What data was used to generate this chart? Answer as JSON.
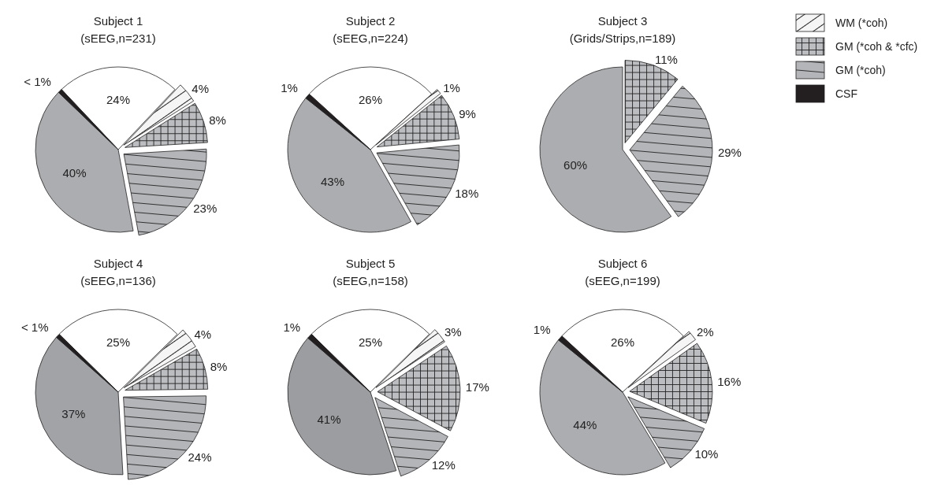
{
  "chart_data": [
    {
      "type": "pie",
      "title": "Subject 1",
      "subtitle": "(sEEG,n=231)",
      "categories": [
        null,
        "WM (*coh)",
        "GM (*coh & *cfc)",
        "GM (*coh)",
        null,
        "CSF"
      ],
      "values": [
        24,
        4,
        8,
        23,
        40,
        0.8
      ],
      "value_labels": [
        "24%",
        "4%",
        "8%",
        "23%",
        "40%",
        "< 1%"
      ],
      "colors": [
        "#ffffff",
        "#f5f5f5",
        "#bcbdc0",
        "#b4b5b8",
        "#acadb0",
        "#231f20"
      ],
      "legend": "right"
    },
    {
      "type": "pie",
      "title": "Subject 2",
      "subtitle": "(sEEG,n=224)",
      "categories": [
        null,
        null,
        null,
        null,
        null,
        null
      ],
      "values": [
        26,
        1,
        9,
        18,
        43,
        1
      ],
      "value_labels": [
        "26%",
        "1%",
        "9%",
        "18%",
        "43%",
        "1%"
      ],
      "colors": [
        "#ffffff",
        "#f5f5f5",
        "#bcbdc0",
        "#b4b5b8",
        "#acadb0",
        "#231f20"
      ]
    },
    {
      "type": "pie",
      "title": "Subject 3",
      "subtitle": "(Grids/Strips,n=189)",
      "categories": [
        null,
        null,
        null
      ],
      "values": [
        11,
        29,
        60
      ],
      "value_labels": [
        "11%",
        "29%",
        "60%"
      ],
      "colors": [
        "#bcbdc0",
        "#b4b5b8",
        "#acadb0"
      ]
    },
    {
      "type": "pie",
      "title": "Subject 4",
      "subtitle": "(sEEG,n=136)",
      "categories": [
        null,
        null,
        null,
        null,
        null,
        null
      ],
      "values": [
        25,
        4,
        8,
        24,
        37,
        0.8
      ],
      "value_labels": [
        "25%",
        "4%",
        "8%",
        "24%",
        "37%",
        "< 1%"
      ],
      "colors": [
        "#ffffff",
        "#f5f5f5",
        "#bcbdc0",
        "#b4b5b8",
        "#a2a3a6",
        "#231f20"
      ]
    },
    {
      "type": "pie",
      "title": "Subject 5",
      "subtitle": "(sEEG,n=158)",
      "categories": [
        null,
        null,
        null,
        null,
        null,
        null
      ],
      "values": [
        25,
        3,
        17,
        12,
        41,
        1
      ],
      "value_labels": [
        "25%",
        "3%",
        "17%",
        "12%",
        "41%",
        "1%"
      ],
      "colors": [
        "#ffffff",
        "#f5f5f5",
        "#bcbdc0",
        "#b4b5b8",
        "#9c9da0",
        "#231f20"
      ]
    },
    {
      "type": "pie",
      "title": "Subject 6",
      "subtitle": "(sEEG,n=199)",
      "categories": [
        null,
        null,
        null,
        null,
        null,
        null
      ],
      "values": [
        26,
        2,
        16,
        10,
        44,
        1
      ],
      "value_labels": [
        "26%",
        "2%",
        "16%",
        "10%",
        "44%",
        "1%"
      ],
      "colors": [
        "#ffffff",
        "#f5f5f5",
        "#bcbdc0",
        "#b4b5b8",
        "#acadb0",
        "#231f20"
      ]
    }
  ]
}
